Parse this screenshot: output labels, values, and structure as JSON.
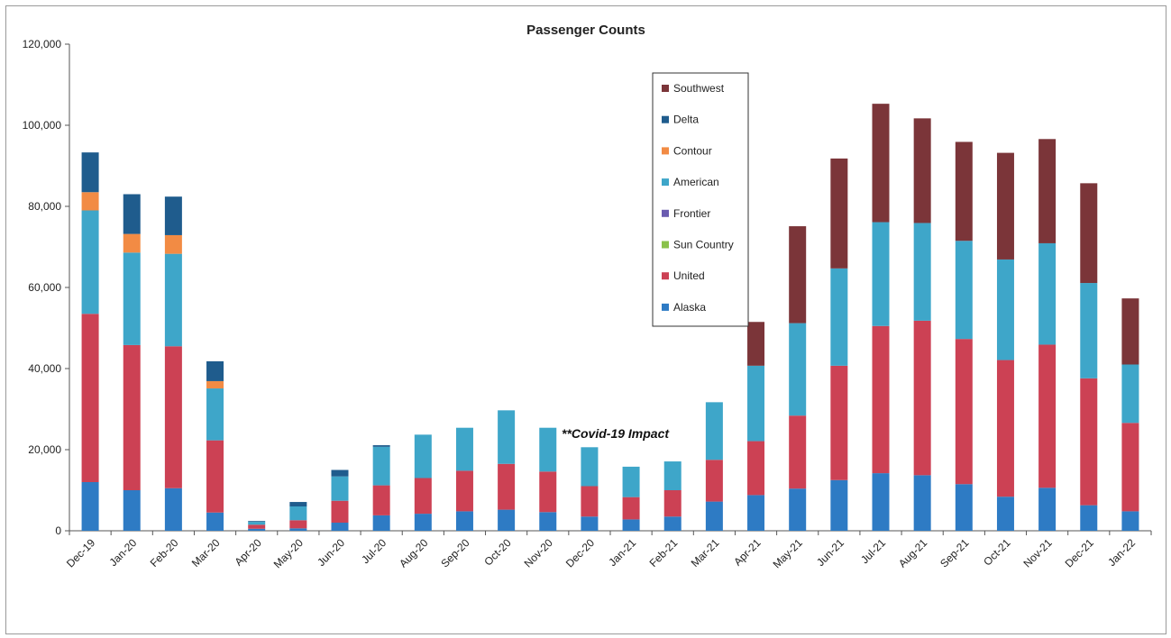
{
  "chart_data": {
    "type": "bar",
    "stacked": true,
    "title": "Passenger Counts",
    "xlabel": "",
    "ylabel": "",
    "ylim": [
      0,
      120000
    ],
    "yticks": [
      "0",
      "20,000",
      "40,000",
      "60,000",
      "80,000",
      "100,000",
      "120,000"
    ],
    "ytick_values": [
      0,
      20000,
      40000,
      60000,
      80000,
      100000,
      120000
    ],
    "grid": false,
    "legend_position": "top-center",
    "annotation": "**Covid-19 Impact",
    "categories": [
      "Dec-19",
      "Jan-20",
      "Feb-20",
      "Mar-20",
      "Apr-20",
      "May-20",
      "Jun-20",
      "Jul-20",
      "Aug-20",
      "Sep-20",
      "Oct-20",
      "Nov-20",
      "Dec-20",
      "Jan-21",
      "Feb-21",
      "Mar-21",
      "Apr-21",
      "May-21",
      "Jun-21",
      "Jul-21",
      "Aug-21",
      "Sep-21",
      "Oct-21",
      "Nov-21",
      "Dec-21",
      "Jan-22"
    ],
    "series": [
      {
        "name": "Alaska",
        "color": "#2e7bc4",
        "values": [
          12000,
          10000,
          10500,
          4500,
          500,
          600,
          2000,
          3800,
          4200,
          4800,
          5200,
          4600,
          3500,
          2800,
          3500,
          7200,
          8800,
          10400,
          12500,
          14200,
          13700,
          11500,
          8400,
          10600,
          6300,
          4800
        ]
      },
      {
        "name": "United",
        "color": "#cc4154",
        "values": [
          41500,
          35800,
          35000,
          17800,
          1000,
          2000,
          5400,
          7400,
          8800,
          10000,
          11300,
          10000,
          7500,
          5500,
          6500,
          10300,
          13300,
          18000,
          28200,
          36300,
          38100,
          35800,
          33700,
          35300,
          31300,
          21800
        ]
      },
      {
        "name": "Sun Country",
        "color": "#8ac24a",
        "values": [
          0,
          0,
          0,
          0,
          0,
          0,
          0,
          0,
          0,
          0,
          0,
          0,
          0,
          0,
          0,
          0,
          0,
          0,
          0,
          0,
          0,
          0,
          0,
          0,
          0,
          0
        ]
      },
      {
        "name": "Frontier",
        "color": "#6a5bb0",
        "values": [
          0,
          0,
          0,
          0,
          0,
          0,
          0,
          0,
          0,
          0,
          0,
          0,
          0,
          0,
          0,
          0,
          0,
          0,
          0,
          0,
          0,
          0,
          0,
          0,
          0,
          0
        ]
      },
      {
        "name": "American",
        "color": "#3ea6c9",
        "values": [
          25500,
          22800,
          22800,
          12800,
          700,
          3400,
          6000,
          9500,
          10700,
          10600,
          13200,
          10800,
          9600,
          7500,
          7100,
          14200,
          18600,
          22800,
          24000,
          25600,
          24100,
          24200,
          24800,
          25000,
          23500,
          14400
        ]
      },
      {
        "name": "Contour",
        "color": "#f28b44",
        "values": [
          4500,
          4600,
          4600,
          1800,
          0,
          0,
          0,
          0,
          0,
          0,
          0,
          0,
          0,
          0,
          0,
          0,
          0,
          0,
          0,
          0,
          0,
          0,
          0,
          0,
          0,
          0
        ]
      },
      {
        "name": "Delta",
        "color": "#1f5c8d",
        "values": [
          9800,
          9800,
          9500,
          4900,
          200,
          1100,
          1600,
          400,
          0,
          0,
          0,
          0,
          0,
          0,
          0,
          0,
          0,
          0,
          0,
          0,
          0,
          0,
          0,
          0,
          0,
          0
        ]
      },
      {
        "name": "Southwest",
        "color": "#7b3539",
        "values": [
          0,
          0,
          0,
          0,
          0,
          0,
          0,
          0,
          0,
          0,
          0,
          0,
          0,
          0,
          0,
          0,
          10800,
          23900,
          27100,
          29200,
          25800,
          24400,
          26300,
          25700,
          24600,
          16300
        ]
      }
    ]
  }
}
